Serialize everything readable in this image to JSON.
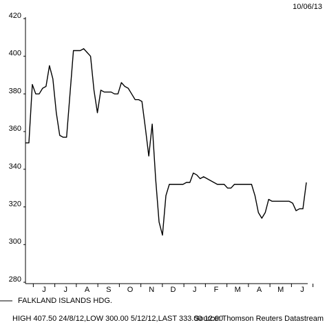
{
  "chart_data": {
    "type": "line",
    "date": "10/06/13",
    "xlabels": [
      "J",
      "J",
      "A",
      "S",
      "O",
      "N",
      "D",
      "J",
      "F",
      "M",
      "A",
      "M",
      "J"
    ],
    "series": [
      {
        "name": "FALKLAND ISLANDS HDG.",
        "color": "#000000",
        "values": [
          354,
          354,
          385,
          380,
          380,
          383,
          384,
          395,
          388,
          370,
          358,
          357,
          357,
          380,
          403,
          403,
          403,
          404,
          402,
          400,
          382,
          370,
          382,
          381,
          381,
          381,
          380,
          380,
          386,
          384,
          383,
          380,
          377,
          377,
          376,
          362,
          347,
          364,
          335,
          312,
          305,
          326,
          332,
          332,
          332,
          332,
          332,
          333,
          333,
          338,
          337,
          335,
          336,
          335,
          334,
          333,
          332,
          332,
          332,
          330,
          330,
          332,
          332,
          332,
          332,
          332,
          332,
          326,
          317,
          314,
          317,
          324,
          323,
          323,
          323,
          323,
          323,
          323,
          322,
          318,
          319,
          319,
          333
        ]
      }
    ],
    "ylim": [
      280,
      420
    ],
    "yticks": [
      280,
      300,
      320,
      340,
      360,
      380,
      400,
      420
    ],
    "footer": "HIGH 407.50 24/8/12,LOW 300.00 5/12/12,LAST 333.00 12:00",
    "source": "Source: Thomson Reuters Datastream"
  }
}
